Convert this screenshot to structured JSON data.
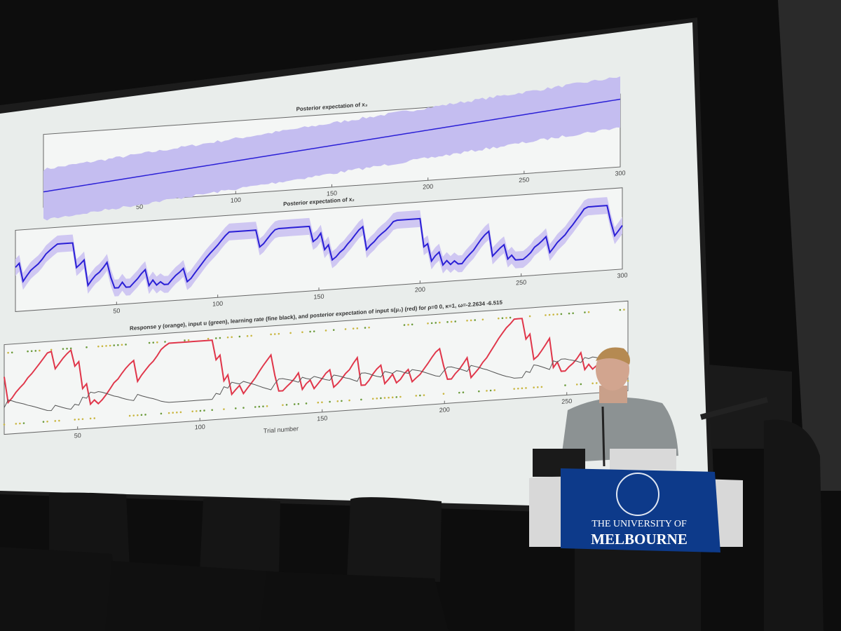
{
  "slide": {
    "plots": [
      {
        "title": "Posterior expectation of x₃",
        "xticks": [
          50,
          100,
          150,
          200,
          250,
          300
        ]
      },
      {
        "title": "Posterior expectation of x₂",
        "xticks": [
          50,
          100,
          150,
          200,
          250,
          300
        ]
      },
      {
        "title": "Response y (orange), input u (green), learning rate (fine black), and posterior expectation of input s(μ₂) (red) for ρ=0 0, κ=1, ω=-2.2634     -6.515",
        "xlabel": "Trial number",
        "xticks": [
          50,
          100,
          150,
          200,
          250
        ]
      }
    ]
  },
  "podium": {
    "line1": "THE UNIVERSITY OF",
    "line2": "MELBOURNE"
  }
}
